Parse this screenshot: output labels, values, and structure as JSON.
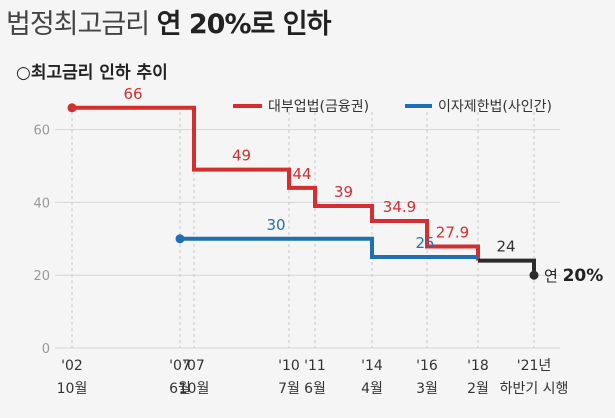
{
  "header": {
    "title_light": "법정최고금리",
    "title_bold": "연 20%로 인하"
  },
  "chart_data": {
    "type": "line",
    "title": "○최고금리 인하 추이",
    "ylim": [
      0,
      70
    ],
    "yticks": [
      "0",
      "20",
      "40",
      "60"
    ],
    "x_ticks": [
      {
        "year": "'02",
        "month": "10월"
      },
      {
        "year": "'07",
        "month": "6월"
      },
      {
        "year": "'07",
        "month": "10월"
      },
      {
        "year": "'10",
        "month": "7월"
      },
      {
        "year": "'11",
        "month": "6월"
      },
      {
        "year": "'14",
        "month": "4월"
      },
      {
        "year": "'16",
        "month": "3월"
      },
      {
        "year": "'18",
        "month": "2월"
      },
      {
        "year": "'21년",
        "month": "하반기 시행"
      }
    ],
    "series": [
      {
        "name": "대부업법(금융권)",
        "color": "#d32f2f",
        "points": [
          {
            "x": "2002-10",
            "y": 66
          },
          {
            "x": "2007-10",
            "y": 49
          },
          {
            "x": "2010-07",
            "y": 44
          },
          {
            "x": "2011-06",
            "y": 39
          },
          {
            "x": "2014-04",
            "y": 34.9
          },
          {
            "x": "2016-03",
            "y": 27.9
          },
          {
            "x": "2018-02",
            "y": 24
          }
        ],
        "labels": [
          "66",
          "49",
          "44",
          "39",
          "34.9",
          "27.9"
        ]
      },
      {
        "name": "이자제한법(사인간)",
        "color": "#1f6fb5",
        "points": [
          {
            "x": "2007-06",
            "y": 30
          },
          {
            "x": "2014-04",
            "y": 25
          }
        ],
        "labels": [
          "30",
          "25"
        ]
      }
    ],
    "combined": {
      "color": "#2b2b2b",
      "points": [
        {
          "x": "2018-02",
          "y": 24
        },
        {
          "x": "2021-H2",
          "y": 20
        }
      ],
      "labels": [
        "24"
      ],
      "final_label_prefix": "연",
      "final_label_value": "20%"
    },
    "grid": true
  }
}
